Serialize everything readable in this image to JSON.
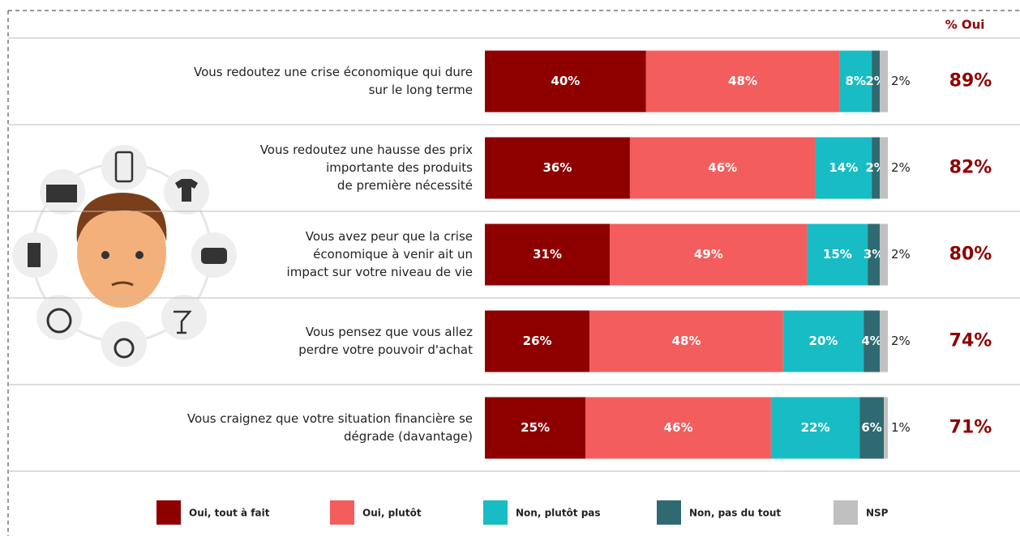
{
  "chart_data": {
    "type": "stacked_barh",
    "categories": [
      [
        "Vous redoutez une crise économique qui dure",
        "sur le long terme"
      ],
      [
        "Vous redoutez une hausse des prix",
        "importante des produits",
        "de première nécessité"
      ],
      [
        "Vous avez peur que la crise",
        "économique à venir ait un",
        "impact sur votre niveau de vie"
      ],
      [
        "Vous pensez que vous allez",
        "perdre votre pouvoir d'achat"
      ],
      [
        "Vous craignez que votre situation financière se",
        "dégrade (davantage)"
      ]
    ],
    "xlim": [
      0,
      100
    ],
    "series": [
      {
        "name": "Oui, tout à fait",
        "color": "#8e0000",
        "values": [
          40,
          36,
          31,
          26,
          25
        ],
        "value_labels": [
          "40%",
          "36%",
          "31%",
          "26%",
          "25%"
        ]
      },
      {
        "name": "Oui, plutôt",
        "color": "#f45d5d",
        "values": [
          48,
          46,
          49,
          48,
          46
        ],
        "value_labels": [
          "48%",
          "46%",
          "49%",
          "48%",
          "46%"
        ]
      },
      {
        "name": "Non, plutôt pas",
        "color": "#18bcc4",
        "values": [
          8,
          14,
          15,
          20,
          22
        ],
        "value_labels": [
          "8%",
          "14%",
          "15%",
          "20%",
          "22%"
        ]
      },
      {
        "name": "Non, pas du tout",
        "color": "#2f6a72",
        "values": [
          2,
          2,
          3,
          4,
          6
        ],
        "value_labels": [
          "2%",
          "2%",
          "3%",
          "4%",
          "6%"
        ]
      },
      {
        "name": "NSP",
        "color": "#c0c0c0",
        "values": [
          2,
          2,
          2,
          2,
          1
        ],
        "value_labels": [
          "2%",
          "2%",
          "2%",
          "2%",
          "1%"
        ]
      }
    ],
    "totals_header": "% Oui",
    "totals": {
      "values": [
        89,
        82,
        80,
        74,
        71
      ],
      "value_labels": [
        "89%",
        "82%",
        "80%",
        "74%",
        "71%"
      ]
    }
  }
}
